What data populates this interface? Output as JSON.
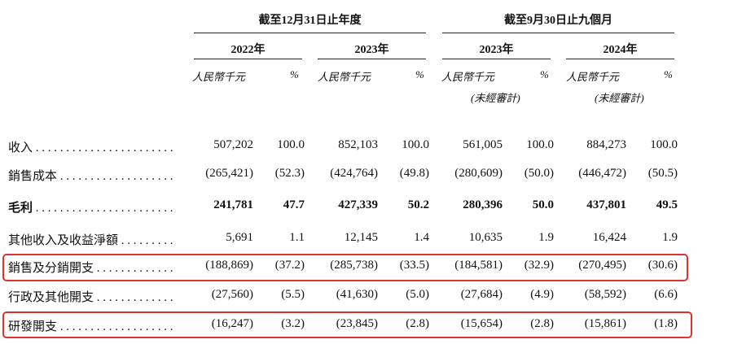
{
  "header": {
    "group1": "截至12月31日止年度",
    "group2": "截至9月30日止九個月",
    "years": [
      "2022年",
      "2023年",
      "2023年",
      "2024年"
    ],
    "unit_rmb": "人民幣千元",
    "unit_pct": "%",
    "unaudited": "(未經審計)"
  },
  "rows": [
    {
      "label": "收入",
      "values": [
        "507,202",
        "100.0",
        "852,103",
        "100.0",
        "561,005",
        "100.0",
        "884,273",
        "100.0"
      ],
      "bold": false
    },
    {
      "label": "銷售成本",
      "values": [
        "(265,421)",
        "(52.3)",
        "(424,764)",
        "(49.8)",
        "(280,609)",
        "(50.0)",
        "(446,472)",
        "(50.5)"
      ],
      "bold": false
    },
    {
      "label": "毛利",
      "values": [
        "241,781",
        "47.7",
        "427,339",
        "50.2",
        "280,396",
        "50.0",
        "437,801",
        "49.5"
      ],
      "bold": true
    },
    {
      "label": "其他收入及收益淨額",
      "values": [
        "5,691",
        "1.1",
        "12,145",
        "1.4",
        "10,635",
        "1.9",
        "16,424",
        "1.9"
      ],
      "bold": false
    },
    {
      "label": "銷售及分銷開支",
      "values": [
        "(188,869)",
        "(37.2)",
        "(285,738)",
        "(33.5)",
        "(184,581)",
        "(32.9)",
        "(270,495)",
        "(30.6)"
      ],
      "bold": false
    },
    {
      "label": "行政及其他開支",
      "values": [
        "(27,560)",
        "(5.5)",
        "(41,630)",
        "(5.0)",
        "(27,684)",
        "(4.9)",
        "(58,592)",
        "(6.6)"
      ],
      "bold": false
    },
    {
      "label": "研發開支",
      "values": [
        "(16,247)",
        "(3.2)",
        "(23,845)",
        "(2.8)",
        "(15,654)",
        "(2.8)",
        "(15,861)",
        "(1.8)"
      ],
      "bold": false
    }
  ]
}
